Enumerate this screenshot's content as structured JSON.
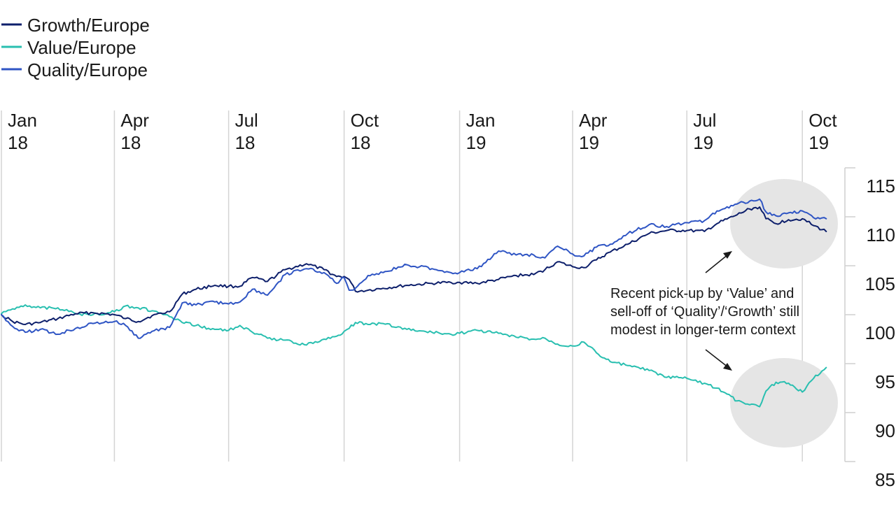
{
  "chart_data": {
    "type": "line",
    "title": "",
    "xlabel": "",
    "ylabel": "",
    "x_ticks": [
      {
        "month": "Jan",
        "year": "18",
        "date": "2018-01-01"
      },
      {
        "month": "Apr",
        "year": "18",
        "date": "2018-04-01"
      },
      {
        "month": "Jul",
        "year": "18",
        "date": "2018-07-01"
      },
      {
        "month": "Oct",
        "year": "18",
        "date": "2018-10-01"
      },
      {
        "month": "Jan",
        "year": "19",
        "date": "2019-01-01"
      },
      {
        "month": "Apr",
        "year": "19",
        "date": "2019-04-01"
      },
      {
        "month": "Jul",
        "year": "19",
        "date": "2019-07-01"
      },
      {
        "month": "Oct",
        "year": "19",
        "date": "2019-10-01"
      }
    ],
    "xlim": [
      "2018-01-01",
      "2019-10-31"
    ],
    "y_ticks": [
      "115",
      "110",
      "105",
      "100",
      "95",
      "90",
      "85"
    ],
    "ylim": [
      85,
      115
    ],
    "grid": "vertical",
    "legend_position": "top-left",
    "series": [
      {
        "name": "Growth/Europe",
        "color": "#0d1f6b",
        "points": [
          [
            "2018-01-01",
            100.0
          ],
          [
            "2018-01-10",
            99.3
          ],
          [
            "2018-01-20",
            99.0
          ],
          [
            "2018-02-01",
            99.2
          ],
          [
            "2018-02-15",
            99.6
          ],
          [
            "2018-03-01",
            100.1
          ],
          [
            "2018-03-15",
            100.2
          ],
          [
            "2018-04-01",
            100.0
          ],
          [
            "2018-04-10",
            99.6
          ],
          [
            "2018-04-20",
            99.3
          ],
          [
            "2018-05-01",
            99.9
          ],
          [
            "2018-05-15",
            100.3
          ],
          [
            "2018-05-25",
            102.1
          ],
          [
            "2018-06-05",
            102.6
          ],
          [
            "2018-06-20",
            103.0
          ],
          [
            "2018-07-01",
            102.9
          ],
          [
            "2018-07-10",
            102.9
          ],
          [
            "2018-07-20",
            103.8
          ],
          [
            "2018-08-01",
            103.4
          ],
          [
            "2018-08-15",
            104.6
          ],
          [
            "2018-09-01",
            105.2
          ],
          [
            "2018-09-15",
            104.6
          ],
          [
            "2018-09-25",
            103.9
          ],
          [
            "2018-10-01",
            103.9
          ],
          [
            "2018-10-05",
            103.6
          ],
          [
            "2018-10-10",
            102.4
          ],
          [
            "2018-10-20",
            102.5
          ],
          [
            "2018-11-01",
            102.7
          ],
          [
            "2018-11-20",
            103.0
          ],
          [
            "2018-12-10",
            103.2
          ],
          [
            "2018-12-25",
            103.3
          ],
          [
            "2019-01-01",
            103.3
          ],
          [
            "2019-01-15",
            103.2
          ],
          [
            "2019-02-01",
            103.6
          ],
          [
            "2019-02-15",
            104.0
          ],
          [
            "2019-03-01",
            104.1
          ],
          [
            "2019-03-10",
            104.6
          ],
          [
            "2019-03-20",
            105.4
          ],
          [
            "2019-04-01",
            104.9
          ],
          [
            "2019-04-10",
            104.8
          ],
          [
            "2019-04-20",
            105.6
          ],
          [
            "2019-05-01",
            106.4
          ],
          [
            "2019-05-15",
            107.2
          ],
          [
            "2019-06-01",
            108.3
          ],
          [
            "2019-06-15",
            108.6
          ],
          [
            "2019-07-01",
            108.6
          ],
          [
            "2019-07-15",
            108.5
          ],
          [
            "2019-07-25",
            109.3
          ],
          [
            "2019-08-10",
            110.2
          ],
          [
            "2019-08-20",
            110.8
          ],
          [
            "2019-08-28",
            111.0
          ],
          [
            "2019-09-02",
            109.8
          ],
          [
            "2019-09-10",
            109.3
          ],
          [
            "2019-09-20",
            109.7
          ],
          [
            "2019-10-01",
            109.8
          ],
          [
            "2019-10-10",
            109.1
          ],
          [
            "2019-10-20",
            108.5
          ]
        ]
      },
      {
        "name": "Value/Europe",
        "color": "#29bfb0",
        "points": [
          [
            "2018-01-01",
            100.1
          ],
          [
            "2018-01-10",
            100.6
          ],
          [
            "2018-01-20",
            101.0
          ],
          [
            "2018-02-01",
            100.7
          ],
          [
            "2018-02-15",
            100.7
          ],
          [
            "2018-03-01",
            100.1
          ],
          [
            "2018-03-15",
            100.0
          ],
          [
            "2018-04-01",
            100.3
          ],
          [
            "2018-04-10",
            100.9
          ],
          [
            "2018-04-20",
            100.7
          ],
          [
            "2018-05-01",
            100.4
          ],
          [
            "2018-05-15",
            99.8
          ],
          [
            "2018-05-25",
            99.2
          ],
          [
            "2018-06-05",
            98.9
          ],
          [
            "2018-06-20",
            98.5
          ],
          [
            "2018-07-01",
            98.4
          ],
          [
            "2018-07-10",
            98.9
          ],
          [
            "2018-07-20",
            98.2
          ],
          [
            "2018-08-01",
            97.6
          ],
          [
            "2018-08-15",
            97.4
          ],
          [
            "2018-09-01",
            96.9
          ],
          [
            "2018-09-15",
            97.5
          ],
          [
            "2018-09-25",
            97.8
          ],
          [
            "2018-10-01",
            98.3
          ],
          [
            "2018-10-05",
            98.6
          ],
          [
            "2018-10-10",
            99.2
          ],
          [
            "2018-10-20",
            99.0
          ],
          [
            "2018-11-01",
            99.1
          ],
          [
            "2018-11-20",
            98.5
          ],
          [
            "2018-12-10",
            98.2
          ],
          [
            "2018-12-25",
            98.0
          ],
          [
            "2019-01-01",
            98.1
          ],
          [
            "2019-01-15",
            98.4
          ],
          [
            "2019-02-01",
            98.1
          ],
          [
            "2019-02-15",
            97.7
          ],
          [
            "2019-03-01",
            97.5
          ],
          [
            "2019-03-10",
            97.6
          ],
          [
            "2019-03-20",
            97.0
          ],
          [
            "2019-04-01",
            96.8
          ],
          [
            "2019-04-10",
            97.2
          ],
          [
            "2019-04-20",
            96.1
          ],
          [
            "2019-05-01",
            95.2
          ],
          [
            "2019-05-15",
            94.8
          ],
          [
            "2019-06-01",
            94.3
          ],
          [
            "2019-06-15",
            93.6
          ],
          [
            "2019-07-01",
            93.5
          ],
          [
            "2019-07-15",
            93.0
          ],
          [
            "2019-07-25",
            92.5
          ],
          [
            "2019-08-10",
            91.2
          ],
          [
            "2019-08-20",
            90.8
          ],
          [
            "2019-08-28",
            90.6
          ],
          [
            "2019-09-02",
            92.2
          ],
          [
            "2019-09-10",
            93.1
          ],
          [
            "2019-09-20",
            93.0
          ],
          [
            "2019-10-01",
            92.1
          ],
          [
            "2019-10-10",
            93.5
          ],
          [
            "2019-10-20",
            94.6
          ]
        ]
      },
      {
        "name": "Quality/Europe",
        "color": "#2f55c4",
        "points": [
          [
            "2018-01-01",
            100.0
          ],
          [
            "2018-01-10",
            98.8
          ],
          [
            "2018-01-20",
            98.2
          ],
          [
            "2018-02-01",
            98.5
          ],
          [
            "2018-02-15",
            98.0
          ],
          [
            "2018-03-01",
            98.6
          ],
          [
            "2018-03-15",
            99.1
          ],
          [
            "2018-04-01",
            99.3
          ],
          [
            "2018-04-10",
            98.9
          ],
          [
            "2018-04-20",
            97.6
          ],
          [
            "2018-05-01",
            98.3
          ],
          [
            "2018-05-15",
            98.7
          ],
          [
            "2018-05-25",
            101.2
          ],
          [
            "2018-06-05",
            101.0
          ],
          [
            "2018-06-20",
            101.3
          ],
          [
            "2018-07-01",
            101.1
          ],
          [
            "2018-07-10",
            101.3
          ],
          [
            "2018-07-20",
            102.6
          ],
          [
            "2018-08-01",
            102.0
          ],
          [
            "2018-08-15",
            104.1
          ],
          [
            "2018-09-01",
            104.7
          ],
          [
            "2018-09-15",
            104.3
          ],
          [
            "2018-09-25",
            103.2
          ],
          [
            "2018-10-01",
            103.8
          ],
          [
            "2018-10-05",
            102.5
          ],
          [
            "2018-10-10",
            102.7
          ],
          [
            "2018-10-20",
            104.0
          ],
          [
            "2018-11-01",
            104.3
          ],
          [
            "2018-11-20",
            105.1
          ],
          [
            "2018-12-10",
            104.7
          ],
          [
            "2018-12-25",
            104.3
          ],
          [
            "2019-01-01",
            104.3
          ],
          [
            "2019-01-15",
            104.7
          ],
          [
            "2019-02-01",
            106.5
          ],
          [
            "2019-02-15",
            106.1
          ],
          [
            "2019-03-01",
            106.1
          ],
          [
            "2019-03-10",
            105.8
          ],
          [
            "2019-03-20",
            107.0
          ],
          [
            "2019-04-01",
            106.2
          ],
          [
            "2019-04-10",
            106.0
          ],
          [
            "2019-04-20",
            106.9
          ],
          [
            "2019-05-01",
            107.2
          ],
          [
            "2019-05-15",
            108.3
          ],
          [
            "2019-06-01",
            109.2
          ],
          [
            "2019-06-15",
            109.0
          ],
          [
            "2019-07-01",
            109.4
          ],
          [
            "2019-07-15",
            109.6
          ],
          [
            "2019-07-25",
            110.6
          ],
          [
            "2019-08-10",
            111.3
          ],
          [
            "2019-08-20",
            111.6
          ],
          [
            "2019-08-28",
            111.8
          ],
          [
            "2019-09-02",
            110.5
          ],
          [
            "2019-09-10",
            110.1
          ],
          [
            "2019-09-20",
            110.4
          ],
          [
            "2019-10-01",
            110.6
          ],
          [
            "2019-10-10",
            109.9
          ],
          [
            "2019-10-20",
            109.8
          ]
        ]
      }
    ],
    "annotation": {
      "lines": [
        "Recent pick-up by ‘Value’ and",
        "sell-off of ‘Quality’/‘Growth’ still",
        "modest in longer-term context"
      ]
    }
  }
}
